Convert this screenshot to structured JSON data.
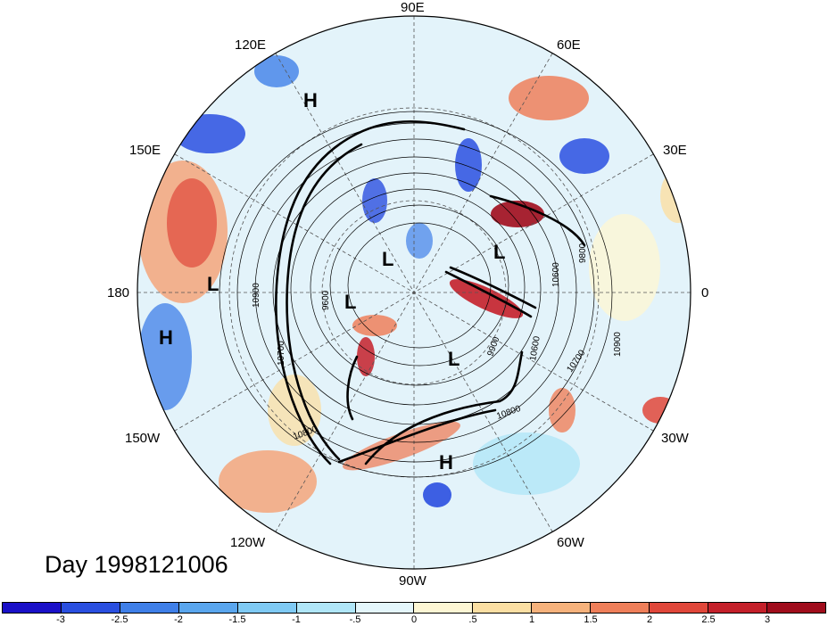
{
  "title": "Day 1998121006",
  "longitude_labels": {
    "lon_90e": "90E",
    "lon_60e": "60E",
    "lon_30e": "30E",
    "lon_0": "0",
    "lon_30w": "30W",
    "lon_60w": "60W",
    "lon_90w": "90W",
    "lon_120w": "120W",
    "lon_150w": "150W",
    "lon_180": "180",
    "lon_150e": "150E",
    "lon_120e": "120E"
  },
  "pressure_centers": {
    "h1": "H",
    "h2": "H",
    "h3": "H",
    "l1": "L",
    "l2": "L",
    "l3": "L",
    "l4": "L",
    "l5": "L"
  },
  "contour_labels": {
    "c1": "10900",
    "c2": "10700",
    "c3": "9600",
    "c4": "10800",
    "c5": "9900",
    "c6": "10600",
    "c7": "10700",
    "c8": "10900",
    "c9": "9800",
    "c10": "10600",
    "c11": "10800"
  },
  "colorbar": {
    "colors": [
      "#1a10c8",
      "#2a4fe0",
      "#3f7fe8",
      "#5aa6ee",
      "#7fcaf4",
      "#b0e6f8",
      "#e4f6fb",
      "#fdf6d4",
      "#fbdfa3",
      "#f6b27c",
      "#ef7f5a",
      "#e0473a",
      "#c4202a",
      "#a00c1c"
    ],
    "tick_labels": [
      "-3",
      "-2.5",
      "-2",
      "-1.5",
      "-1",
      "-.5",
      "0",
      ".5",
      "1",
      "1.5",
      "2",
      "2.5",
      "3"
    ]
  }
}
